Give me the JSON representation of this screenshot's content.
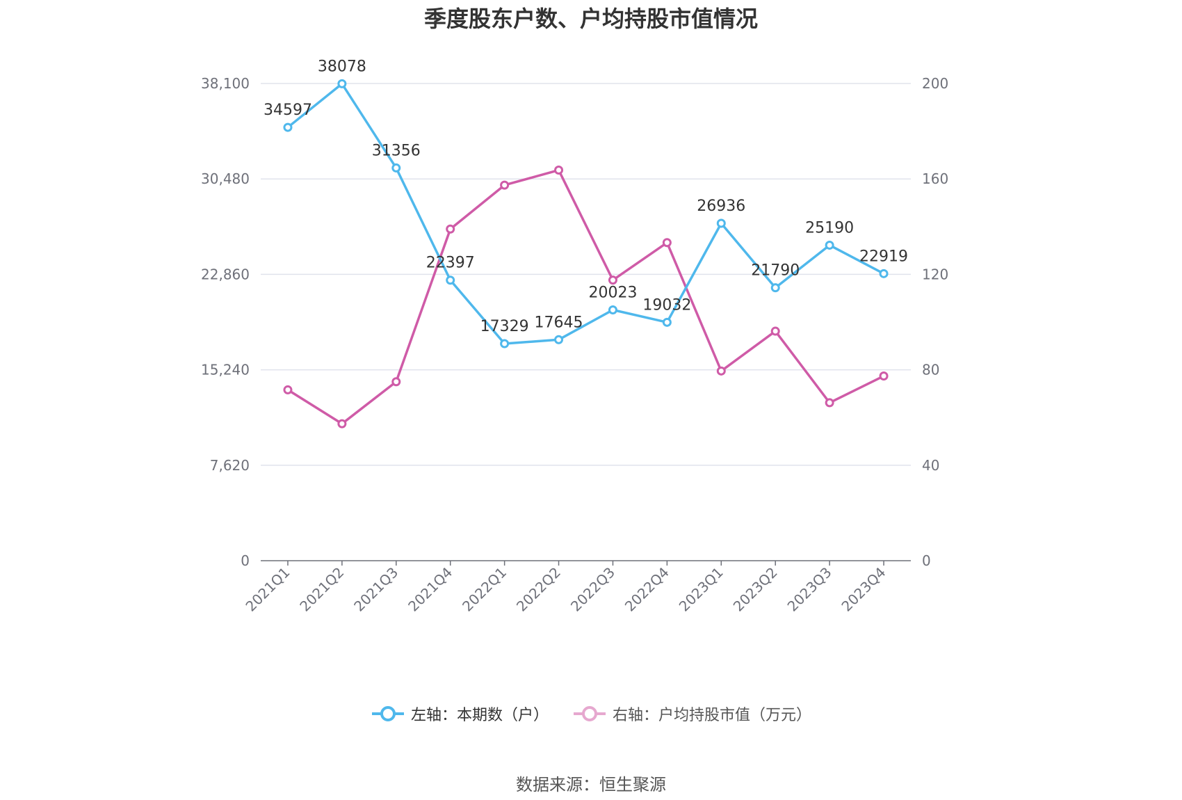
{
  "title": "季度股东户数、户均持股市值情况",
  "source": "数据来源：恒生聚源",
  "colors": {
    "left_series": "#4fb8ec",
    "right_series": "#cf5ba7",
    "right_legend_muted": "#e6a8cf",
    "grid": "#e0e3ec",
    "axis": "#6e7079"
  },
  "legend": [
    {
      "label": "左轴：本期数（户）",
      "icon": "circle-line-icon"
    },
    {
      "label": "右轴：户均持股市值（万元）",
      "icon": "circle-line-icon"
    }
  ],
  "chart_data": {
    "type": "line",
    "title": "季度股东户数、户均持股市值情况",
    "categories": [
      "2021Q1",
      "2021Q2",
      "2021Q3",
      "2021Q4",
      "2022Q1",
      "2022Q2",
      "2022Q3",
      "2022Q4",
      "2023Q1",
      "2023Q2",
      "2023Q3",
      "2023Q4"
    ],
    "left_axis": {
      "ylim": [
        0,
        38100
      ],
      "ticks": [
        "0",
        "7,620",
        "15,240",
        "22,860",
        "30,480",
        "38,100"
      ]
    },
    "right_axis": {
      "ylim": [
        0,
        200
      ],
      "ticks": [
        "0",
        "40",
        "80",
        "120",
        "160",
        "200"
      ]
    },
    "series": [
      {
        "name": "左轴：本期数（户）",
        "axis": "left",
        "values": [
          34597,
          38078,
          31356,
          22397,
          17329,
          17645,
          20023,
          19032,
          26936,
          21790,
          25190,
          22919
        ],
        "labels": [
          "34597",
          "38078",
          "31356",
          "22397",
          "17329",
          "17645",
          "20023",
          "19032",
          "26936",
          "21790",
          "25190",
          "22919"
        ]
      },
      {
        "name": "右轴：户均持股市值（万元）",
        "axis": "right",
        "values": [
          71.6,
          57.4,
          75.0,
          139.0,
          157.4,
          163.7,
          117.6,
          133.3,
          79.5,
          96.2,
          66.2,
          77.4
        ]
      }
    ],
    "grid": true,
    "legend_position": "bottom"
  }
}
